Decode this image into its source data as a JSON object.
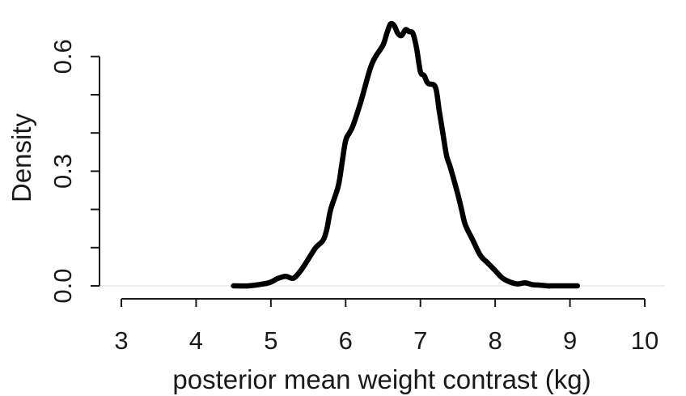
{
  "chart_data": {
    "type": "line",
    "title": "",
    "xlabel": "posterior mean weight contrast (kg)",
    "ylabel": "Density",
    "xlim": [
      3,
      10
    ],
    "ylim": [
      0,
      0.68
    ],
    "x_ticks": [
      3,
      4,
      5,
      6,
      7,
      8,
      9,
      10
    ],
    "x_tick_labels": [
      "3",
      "4",
      "5",
      "6",
      "7",
      "8",
      "9",
      "10"
    ],
    "y_ticks": [
      0.0,
      0.1,
      0.2,
      0.3,
      0.4,
      0.5,
      0.6
    ],
    "y_tick_labels": [
      "0.0",
      "",
      "",
      "0.3",
      "",
      "",
      "0.6"
    ],
    "grid": false,
    "legend": "none",
    "line_color": "#000000",
    "series": [
      {
        "x": [
          4.5,
          4.7,
          4.9,
          5.0,
          5.1,
          5.2,
          5.3,
          5.4,
          5.5,
          5.6,
          5.7,
          5.75,
          5.8,
          5.9,
          5.95,
          6.0,
          6.05,
          6.1,
          6.2,
          6.3,
          6.35,
          6.4,
          6.5,
          6.55,
          6.6,
          6.65,
          6.7,
          6.75,
          6.8,
          6.85,
          6.9,
          6.95,
          7.0,
          7.05,
          7.1,
          7.2,
          7.25,
          7.3,
          7.35,
          7.4,
          7.5,
          7.55,
          7.6,
          7.7,
          7.8,
          7.9,
          8.0,
          8.1,
          8.2,
          8.3,
          8.4,
          8.5,
          8.6,
          8.7,
          8.8,
          9.0,
          9.1
        ],
        "y": [
          0.0,
          0.0,
          0.005,
          0.01,
          0.02,
          0.025,
          0.02,
          0.04,
          0.07,
          0.1,
          0.12,
          0.15,
          0.2,
          0.26,
          0.32,
          0.38,
          0.4,
          0.42,
          0.48,
          0.55,
          0.58,
          0.6,
          0.63,
          0.66,
          0.685,
          0.68,
          0.66,
          0.655,
          0.67,
          0.665,
          0.66,
          0.62,
          0.56,
          0.55,
          0.53,
          0.52,
          0.46,
          0.4,
          0.34,
          0.31,
          0.24,
          0.2,
          0.16,
          0.12,
          0.08,
          0.06,
          0.04,
          0.02,
          0.01,
          0.005,
          0.008,
          0.003,
          0.002,
          0.0,
          0.0,
          0.0,
          0.0
        ]
      }
    ]
  }
}
